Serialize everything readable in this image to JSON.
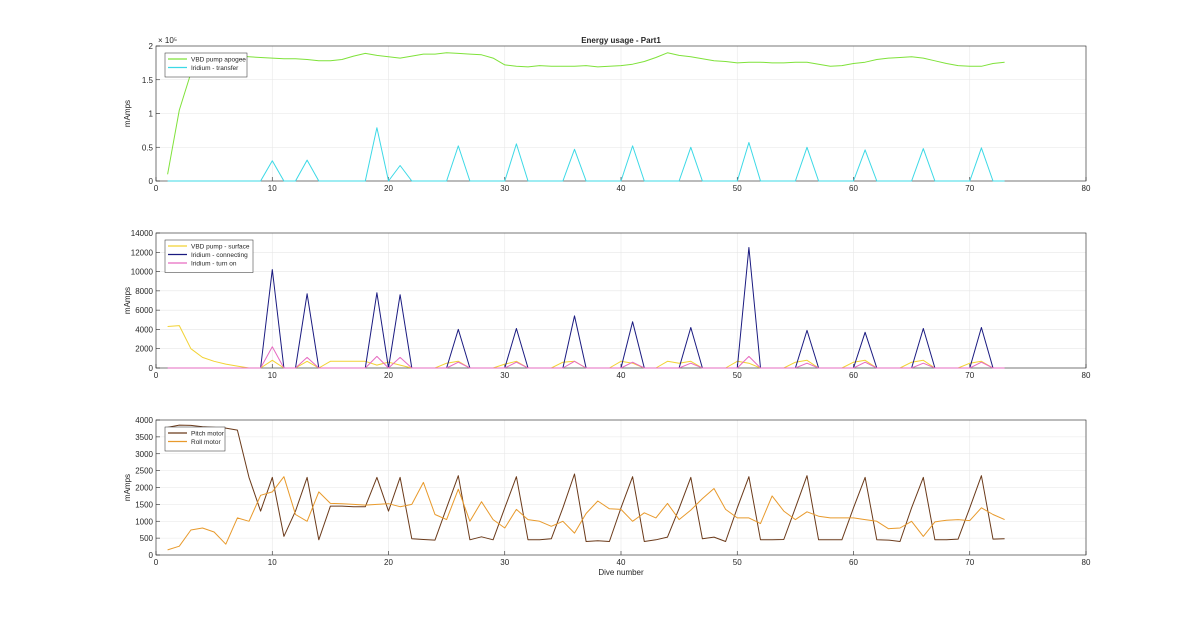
{
  "chart_data": [
    {
      "type": "line",
      "title": "Energy usage - Part1",
      "xlabel": "",
      "ylabel": "mAmps",
      "exponent_label": "× 10⁵",
      "xlim": [
        0,
        80
      ],
      "ylim": [
        0,
        2
      ],
      "xticks": [
        "0",
        "10",
        "20",
        "30",
        "40",
        "50",
        "60",
        "70",
        "80"
      ],
      "yticks": [
        "0",
        "0.5",
        "1",
        "1.5",
        "2"
      ],
      "grid": true,
      "legend": "top-left",
      "series": [
        {
          "name": "VBD pump apogee",
          "color": "#7FE23A",
          "x": [
            1,
            2,
            3,
            4,
            5,
            6,
            7,
            8,
            9,
            10,
            11,
            12,
            13,
            14,
            15,
            16,
            17,
            18,
            19,
            20,
            21,
            22,
            23,
            24,
            25,
            26,
            27,
            28,
            29,
            30,
            31,
            32,
            33,
            34,
            35,
            36,
            37,
            38,
            39,
            40,
            41,
            42,
            43,
            44,
            45,
            46,
            47,
            48,
            49,
            50,
            51,
            52,
            53,
            54,
            55,
            56,
            57,
            58,
            59,
            60,
            61,
            62,
            63,
            64,
            65,
            66,
            67,
            68,
            69,
            70,
            71,
            72,
            73
          ],
          "values": [
            0.1,
            1.05,
            1.6,
            1.88,
            1.87,
            1.86,
            1.85,
            1.84,
            1.83,
            1.82,
            1.81,
            1.81,
            1.8,
            1.78,
            1.78,
            1.8,
            1.85,
            1.89,
            1.86,
            1.84,
            1.82,
            1.85,
            1.88,
            1.88,
            1.9,
            1.89,
            1.88,
            1.87,
            1.82,
            1.72,
            1.7,
            1.69,
            1.71,
            1.7,
            1.7,
            1.7,
            1.71,
            1.69,
            1.7,
            1.71,
            1.73,
            1.77,
            1.83,
            1.9,
            1.86,
            1.84,
            1.81,
            1.78,
            1.77,
            1.75,
            1.76,
            1.76,
            1.75,
            1.75,
            1.76,
            1.76,
            1.73,
            1.7,
            1.71,
            1.74,
            1.76,
            1.8,
            1.82,
            1.83,
            1.84,
            1.82,
            1.78,
            1.74,
            1.71,
            1.7,
            1.7,
            1.74,
            1.76
          ]
        },
        {
          "name": "Iridium - transfer",
          "color": "#3CD9E6",
          "x": [
            1,
            9,
            10,
            11,
            12,
            13,
            14,
            18,
            19,
            20,
            21,
            22,
            25,
            26,
            27,
            30,
            31,
            32,
            35,
            36,
            37,
            40,
            41,
            42,
            45,
            46,
            47,
            50,
            51,
            52,
            55,
            56,
            57,
            60,
            61,
            62,
            65,
            66,
            67,
            70,
            71,
            72,
            73
          ],
          "values": [
            0,
            0,
            0.3,
            0,
            0,
            0.31,
            0,
            0,
            0.79,
            0,
            0.23,
            0,
            0,
            0.52,
            0,
            0,
            0.55,
            0,
            0,
            0.47,
            0,
            0,
            0.52,
            0,
            0,
            0.5,
            0,
            0,
            0.57,
            0,
            0,
            0.5,
            0,
            0,
            0.46,
            0,
            0,
            0.48,
            0,
            0,
            0.49,
            0,
            0
          ]
        }
      ]
    },
    {
      "type": "line",
      "title": "",
      "xlabel": "",
      "ylabel": "mAmps",
      "xlim": [
        0,
        80
      ],
      "ylim": [
        0,
        14000
      ],
      "xticks": [
        "0",
        "10",
        "20",
        "30",
        "40",
        "50",
        "60",
        "70",
        "80"
      ],
      "yticks": [
        "0",
        "2000",
        "4000",
        "6000",
        "8000",
        "10000",
        "12000",
        "14000"
      ],
      "grid": true,
      "legend": "top-left",
      "series": [
        {
          "name": "VBD pump - surface",
          "color": "#F2D233",
          "x": [
            1,
            2,
            3,
            4,
            5,
            6,
            7,
            8,
            9,
            10,
            11,
            12,
            13,
            14,
            15,
            16,
            17,
            18,
            19,
            20,
            21,
            22,
            23,
            24,
            25,
            26,
            27,
            28,
            29,
            30,
            31,
            32,
            33,
            34,
            35,
            36,
            37,
            38,
            39,
            40,
            41,
            42,
            43,
            44,
            45,
            46,
            47,
            48,
            49,
            50,
            51,
            52,
            53,
            54,
            55,
            56,
            57,
            58,
            59,
            60,
            61,
            62,
            63,
            64,
            65,
            66,
            67,
            68,
            69,
            70,
            71,
            72,
            73
          ],
          "values": [
            4300,
            4400,
            2000,
            1100,
            700,
            400,
            200,
            0,
            0,
            800,
            0,
            0,
            700,
            0,
            700,
            700,
            700,
            700,
            300,
            600,
            300,
            0,
            0,
            0,
            500,
            700,
            0,
            0,
            0,
            400,
            700,
            0,
            0,
            0,
            600,
            700,
            0,
            0,
            0,
            700,
            500,
            0,
            0,
            700,
            500,
            700,
            0,
            0,
            0,
            700,
            500,
            0,
            0,
            0,
            600,
            800,
            0,
            0,
            0,
            600,
            800,
            0,
            0,
            0,
            600,
            800,
            0,
            0,
            0,
            500,
            700,
            0,
            0
          ]
        },
        {
          "name": "Iridium - connecting",
          "color": "#1A1A80",
          "x": [
            1,
            9,
            10,
            11,
            12,
            13,
            14,
            18,
            19,
            20,
            21,
            22,
            25,
            26,
            27,
            30,
            31,
            32,
            35,
            36,
            37,
            40,
            41,
            42,
            45,
            46,
            47,
            50,
            51,
            52,
            55,
            56,
            57,
            60,
            61,
            62,
            65,
            66,
            67,
            70,
            71,
            72,
            73
          ],
          "values": [
            0,
            0,
            10200,
            0,
            0,
            7700,
            0,
            0,
            7800,
            0,
            7600,
            0,
            0,
            4000,
            0,
            0,
            4100,
            0,
            0,
            5400,
            0,
            0,
            4800,
            0,
            0,
            4200,
            0,
            0,
            12500,
            0,
            0,
            3900,
            0,
            0,
            3700,
            0,
            0,
            4100,
            0,
            0,
            4200,
            0,
            0
          ]
        },
        {
          "name": "Iridium - turn on",
          "color": "#E66BC1",
          "x": [
            1,
            9,
            10,
            11,
            12,
            13,
            14,
            18,
            19,
            20,
            21,
            22,
            25,
            26,
            27,
            30,
            31,
            32,
            35,
            36,
            37,
            40,
            41,
            42,
            45,
            46,
            47,
            50,
            51,
            52,
            55,
            56,
            57,
            60,
            61,
            62,
            65,
            66,
            67,
            70,
            71,
            72,
            73
          ],
          "values": [
            0,
            0,
            2200,
            0,
            0,
            1100,
            0,
            0,
            1200,
            0,
            1100,
            0,
            0,
            600,
            0,
            0,
            600,
            0,
            0,
            700,
            0,
            0,
            600,
            0,
            0,
            500,
            0,
            0,
            1200,
            0,
            0,
            500,
            0,
            0,
            600,
            0,
            0,
            500,
            0,
            0,
            600,
            0,
            0
          ]
        }
      ]
    },
    {
      "type": "line",
      "title": "",
      "xlabel": "Dive number",
      "ylabel": "mAmps",
      "xlim": [
        0,
        80
      ],
      "ylim": [
        0,
        4000
      ],
      "xticks": [
        "0",
        "10",
        "20",
        "30",
        "40",
        "50",
        "60",
        "70",
        "80"
      ],
      "yticks": [
        "0",
        "500",
        "1000",
        "1500",
        "2000",
        "2500",
        "3000",
        "3500",
        "4000"
      ],
      "grid": true,
      "legend": "top-left",
      "series": [
        {
          "name": "Pitch motor",
          "color": "#6B3A1A",
          "x": [
            1,
            2,
            3,
            4,
            5,
            6,
            7,
            8,
            9,
            10,
            11,
            12,
            13,
            14,
            15,
            16,
            17,
            18,
            19,
            20,
            21,
            22,
            23,
            24,
            25,
            26,
            27,
            28,
            29,
            30,
            31,
            32,
            33,
            34,
            35,
            36,
            37,
            38,
            39,
            40,
            41,
            42,
            43,
            44,
            45,
            46,
            47,
            48,
            49,
            50,
            51,
            52,
            53,
            54,
            55,
            56,
            57,
            58,
            59,
            60,
            61,
            62,
            63,
            64,
            65,
            66,
            67,
            68,
            69,
            70,
            71,
            72,
            73
          ],
          "values": [
            3780,
            3850,
            3840,
            3800,
            3780,
            3760,
            3700,
            2300,
            1300,
            2300,
            550,
            1300,
            2300,
            450,
            1450,
            1450,
            1430,
            1430,
            2300,
            1300,
            2300,
            480,
            460,
            440,
            1400,
            2350,
            450,
            540,
            450,
            1400,
            2320,
            450,
            450,
            480,
            1400,
            2400,
            400,
            420,
            400,
            1400,
            2320,
            400,
            450,
            530,
            1380,
            2300,
            480,
            530,
            400,
            1400,
            2320,
            450,
            450,
            460,
            1400,
            2350,
            450,
            450,
            450,
            1400,
            2300,
            450,
            440,
            400,
            1400,
            2300,
            450,
            450,
            470,
            1400,
            2350,
            470,
            480
          ]
        },
        {
          "name": "Roll motor",
          "color": "#E89A2C",
          "x": [
            1,
            2,
            3,
            4,
            5,
            6,
            7,
            8,
            9,
            10,
            11,
            12,
            13,
            14,
            15,
            16,
            17,
            18,
            19,
            20,
            21,
            22,
            23,
            24,
            25,
            26,
            27,
            28,
            29,
            30,
            31,
            32,
            33,
            34,
            35,
            36,
            37,
            38,
            39,
            40,
            41,
            42,
            43,
            44,
            45,
            46,
            47,
            48,
            49,
            50,
            51,
            52,
            53,
            54,
            55,
            56,
            57,
            58,
            59,
            60,
            61,
            62,
            63,
            64,
            65,
            66,
            67,
            68,
            69,
            70,
            71,
            72,
            73
          ],
          "values": [
            150,
            260,
            740,
            800,
            680,
            320,
            1100,
            1000,
            1770,
            1870,
            2320,
            1200,
            1000,
            1870,
            1530,
            1520,
            1500,
            1480,
            1500,
            1520,
            1430,
            1500,
            2150,
            1200,
            1050,
            1950,
            1000,
            1580,
            1050,
            800,
            1350,
            1050,
            1000,
            850,
            1000,
            650,
            1230,
            1600,
            1370,
            1350,
            1000,
            1250,
            1100,
            1530,
            1050,
            1330,
            1670,
            1970,
            1350,
            1100,
            1100,
            930,
            1750,
            1300,
            1050,
            1280,
            1150,
            1100,
            1100,
            1100,
            1050,
            1000,
            780,
            800,
            1000,
            550,
            980,
            1030,
            1050,
            1020,
            1400,
            1200,
            1050
          ]
        }
      ]
    }
  ]
}
